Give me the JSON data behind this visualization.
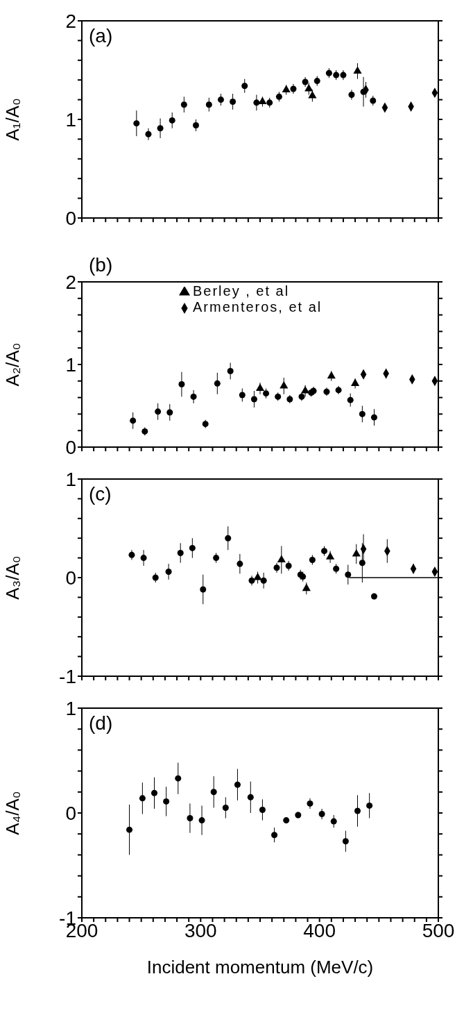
{
  "chart_data": [
    {
      "type": "scatter",
      "title": "(a)",
      "ylabel": "A₁/A₀",
      "xlim": [
        200,
        500
      ],
      "ylim": [
        0,
        2
      ],
      "tick_labels": "y",
      "legend": false,
      "xticks": [
        200,
        {
          "value": 210,
          "label": null
        },
        {
          "value": 220,
          "label": null
        },
        {
          "value": 230,
          "label": null
        },
        {
          "value": 240,
          "label": null
        },
        {
          "value": 250,
          "label": null
        },
        {
          "value": 260,
          "label": null
        },
        {
          "value": 270,
          "label": null
        },
        {
          "value": 280,
          "label": null
        },
        {
          "value": 290,
          "label": null
        },
        300,
        {
          "value": 310,
          "label": null
        },
        {
          "value": 320,
          "label": null
        },
        {
          "value": 330,
          "label": null
        },
        {
          "value": 340,
          "label": null
        },
        {
          "value": 350,
          "label": null
        },
        {
          "value": 360,
          "label": null
        },
        {
          "value": 370,
          "label": null
        },
        {
          "value": 380,
          "label": null
        },
        {
          "value": 390,
          "label": null
        },
        400,
        {
          "value": 410,
          "label": null
        },
        {
          "value": 420,
          "label": null
        },
        {
          "value": 430,
          "label": null
        },
        {
          "value": 440,
          "label": null
        },
        {
          "value": 450,
          "label": null
        },
        {
          "value": 460,
          "label": null
        },
        {
          "value": 470,
          "label": null
        },
        {
          "value": 480,
          "label": null
        },
        {
          "value": 490,
          "label": null
        },
        500
      ],
      "yticks": [
        0,
        {
          "value": 0.2,
          "label": null
        },
        {
          "value": 0.4,
          "label": null
        },
        {
          "value": 0.6,
          "label": null
        },
        {
          "value": 0.8,
          "label": null
        },
        1,
        {
          "value": 1.2,
          "label": null
        },
        {
          "value": 1.4,
          "label": null
        },
        {
          "value": 1.6,
          "label": null
        },
        {
          "value": 1.8,
          "label": null
        },
        2
      ],
      "series": [
        {
          "color": "#000000",
          "marker": "circle",
          "x": [
            246,
            256,
            266,
            276,
            286,
            296,
            307,
            317,
            327,
            337,
            347,
            358,
            366,
            378,
            388,
            398,
            408,
            414,
            420,
            427,
            437,
            445
          ],
          "values": [
            0.96,
            0.85,
            0.91,
            0.99,
            1.15,
            0.94,
            1.15,
            1.2,
            1.18,
            1.34,
            1.17,
            1.17,
            1.23,
            1.31,
            1.38,
            1.39,
            1.47,
            1.45,
            1.45,
            1.25,
            1.28,
            1.19
          ],
          "errors": [
            0.13,
            0.06,
            0.1,
            0.08,
            0.08,
            0.06,
            0.07,
            0.06,
            0.08,
            0.07,
            0.08,
            0.05,
            0.05,
            0.05,
            0.05,
            0.05,
            0.05,
            0.05,
            0.05,
            0.05,
            0.15,
            0.05
          ]
        },
        {
          "color": "#000000",
          "marker": "triangle",
          "x": [
            352,
            372,
            391,
            394,
            432
          ],
          "values": [
            1.18,
            1.3,
            1.31,
            1.24,
            1.49
          ],
          "errors": [
            0.05,
            0.05,
            0.06,
            0.06,
            0.08
          ]
        },
        {
          "color": "#000000",
          "marker": "diamond",
          "x": [
            439,
            455,
            477,
            497
          ],
          "values": [
            1.3,
            1.12,
            1.13,
            1.27
          ],
          "errors": [
            0.08,
            0.04,
            0.04,
            0.04
          ]
        }
      ]
    },
    {
      "type": "scatter",
      "title": "(b)",
      "ylabel": "A₂/A₀",
      "xlim": [
        200,
        500
      ],
      "ylim": [
        0,
        2
      ],
      "tick_labels": "y",
      "legend": "top",
      "xticks": [
        200,
        {
          "value": 210,
          "label": null
        },
        {
          "value": 220,
          "label": null
        },
        {
          "value": 230,
          "label": null
        },
        {
          "value": 240,
          "label": null
        },
        {
          "value": 250,
          "label": null
        },
        {
          "value": 260,
          "label": null
        },
        {
          "value": 270,
          "label": null
        },
        {
          "value": 280,
          "label": null
        },
        {
          "value": 290,
          "label": null
        },
        300,
        {
          "value": 310,
          "label": null
        },
        {
          "value": 320,
          "label": null
        },
        {
          "value": 330,
          "label": null
        },
        {
          "value": 340,
          "label": null
        },
        {
          "value": 350,
          "label": null
        },
        {
          "value": 360,
          "label": null
        },
        {
          "value": 370,
          "label": null
        },
        {
          "value": 380,
          "label": null
        },
        {
          "value": 390,
          "label": null
        },
        400,
        {
          "value": 410,
          "label": null
        },
        {
          "value": 420,
          "label": null
        },
        {
          "value": 430,
          "label": null
        },
        {
          "value": 440,
          "label": null
        },
        {
          "value": 450,
          "label": null
        },
        {
          "value": 460,
          "label": null
        },
        {
          "value": 470,
          "label": null
        },
        {
          "value": 480,
          "label": null
        },
        {
          "value": 490,
          "label": null
        },
        500
      ],
      "yticks": [
        0,
        {
          "value": 0.2,
          "label": null
        },
        {
          "value": 0.4,
          "label": null
        },
        {
          "value": 0.6,
          "label": null
        },
        {
          "value": 0.8,
          "label": null
        },
        1,
        {
          "value": 1.2,
          "label": null
        },
        {
          "value": 1.4,
          "label": null
        },
        {
          "value": 1.6,
          "label": null
        },
        {
          "value": 1.8,
          "label": null
        },
        2
      ],
      "series": [
        {
          "color": "#000000",
          "marker": "circle",
          "x": [
            243,
            253,
            264,
            274,
            284,
            294,
            304,
            314,
            325,
            335,
            345,
            355,
            365,
            375,
            385,
            390,
            393,
            395,
            406,
            416,
            426,
            436,
            446
          ],
          "values": [
            0.32,
            0.19,
            0.43,
            0.42,
            0.76,
            0.61,
            0.28,
            0.77,
            0.92,
            0.63,
            0.58,
            0.65,
            0.61,
            0.58,
            0.61,
            null,
            0.66,
            0.68,
            0.67,
            0.69,
            0.57,
            0.4,
            0.36
          ],
          "errors": [
            0.1,
            0.05,
            0.1,
            0.1,
            0.15,
            0.08,
            0.05,
            0.13,
            0.1,
            0.08,
            0.1,
            0.06,
            0.05,
            0.05,
            0.05,
            null,
            0.05,
            0.05,
            0.05,
            0.05,
            0.08,
            0.1,
            0.1
          ]
        },
        {
          "name": "Berley , et al",
          "color": "#000000",
          "marker": "triangle",
          "x": [
            350,
            370,
            388,
            410,
            430
          ],
          "values": [
            0.71,
            0.74,
            0.68,
            0.86,
            0.77
          ],
          "errors": [
            0.07,
            0.1,
            0.07,
            0.06,
            0.06
          ]
        },
        {
          "name": "Armenteros, et al",
          "color": "#000000",
          "marker": "diamond",
          "x": [
            437,
            456,
            478,
            497
          ],
          "values": [
            0.88,
            0.89,
            0.82,
            0.8
          ],
          "errors": [
            0.05,
            0.06,
            0.05,
            0.05
          ]
        }
      ]
    },
    {
      "type": "scatter",
      "title": "(c)",
      "ylabel": "A₃/A₀",
      "xlim": [
        200,
        500
      ],
      "ylim": [
        -1,
        1
      ],
      "tick_labels": "y",
      "legend": false,
      "xticks": [
        200,
        {
          "value": 210,
          "label": null
        },
        {
          "value": 220,
          "label": null
        },
        {
          "value": 230,
          "label": null
        },
        {
          "value": 240,
          "label": null
        },
        {
          "value": 250,
          "label": null
        },
        {
          "value": 260,
          "label": null
        },
        {
          "value": 270,
          "label": null
        },
        {
          "value": 280,
          "label": null
        },
        {
          "value": 290,
          "label": null
        },
        300,
        {
          "value": 310,
          "label": null
        },
        {
          "value": 320,
          "label": null
        },
        {
          "value": 330,
          "label": null
        },
        {
          "value": 340,
          "label": null
        },
        {
          "value": 350,
          "label": null
        },
        {
          "value": 360,
          "label": null
        },
        {
          "value": 370,
          "label": null
        },
        {
          "value": 380,
          "label": null
        },
        {
          "value": 390,
          "label": null
        },
        400,
        {
          "value": 410,
          "label": null
        },
        {
          "value": 420,
          "label": null
        },
        {
          "value": 430,
          "label": null
        },
        {
          "value": 440,
          "label": null
        },
        {
          "value": 450,
          "label": null
        },
        {
          "value": 460,
          "label": null
        },
        {
          "value": 470,
          "label": null
        },
        {
          "value": 480,
          "label": null
        },
        {
          "value": 490,
          "label": null
        },
        500
      ],
      "yticks": [
        -1,
        {
          "value": -0.8,
          "label": null
        },
        {
          "value": -0.6,
          "label": null
        },
        {
          "value": -0.4,
          "label": null
        },
        {
          "value": -0.2,
          "label": null
        },
        0,
        {
          "value": 0.2,
          "label": null
        },
        {
          "value": 0.4,
          "label": null
        },
        {
          "value": 0.6,
          "label": null
        },
        {
          "value": 0.8,
          "label": null
        },
        1
      ],
      "series": [
        {
          "color": "#000000",
          "marker": "circle",
          "x": [
            242,
            252,
            262,
            273,
            283,
            293,
            302,
            313,
            323,
            333,
            343,
            353,
            364,
            374,
            384,
            386,
            394,
            404,
            414,
            424,
            436,
            446
          ],
          "values": [
            0.23,
            0.2,
            0.0,
            0.06,
            0.25,
            0.3,
            -0.12,
            0.2,
            0.4,
            0.14,
            -0.03,
            -0.03,
            0.1,
            0.12,
            0.03,
            0.01,
            0.18,
            0.27,
            0.09,
            0.03,
            0.15,
            -0.19
          ],
          "errors": [
            0.05,
            0.08,
            0.05,
            0.08,
            0.1,
            0.1,
            0.15,
            0.05,
            0.12,
            0.1,
            0.05,
            0.08,
            0.05,
            0.05,
            0.05,
            0.05,
            0.05,
            0.05,
            0.05,
            0.1,
            0.2,
            0.03
          ]
        },
        {
          "color": "#000000",
          "marker": "triangle",
          "x": [
            348,
            368,
            389,
            409,
            431
          ],
          "values": [
            0.0,
            0.18,
            -0.11,
            0.21,
            0.24
          ],
          "errors": [
            0.06,
            0.14,
            0.06,
            0.06,
            0.1
          ]
        },
        {
          "color": "#000000",
          "marker": "diamond",
          "x": [
            437,
            457,
            479,
            497
          ],
          "values": [
            0.29,
            0.27,
            0.09,
            0.06
          ],
          "errors": [
            0.15,
            0.12,
            0.05,
            0.04
          ]
        },
        {
          "type": "line",
          "color": "#000000",
          "marker": "none",
          "x": [
            425,
            500
          ],
          "values": [
            0,
            0
          ]
        }
      ]
    },
    {
      "type": "scatter",
      "title": "(d)",
      "ylabel": "A₄/A₀",
      "xlabel": "Incident momentum (MeV/c)",
      "xlim": [
        200,
        500
      ],
      "ylim": [
        -1,
        1
      ],
      "legend": false,
      "xticks": [
        200,
        {
          "value": 210,
          "label": null
        },
        {
          "value": 220,
          "label": null
        },
        {
          "value": 230,
          "label": null
        },
        {
          "value": 240,
          "label": null
        },
        {
          "value": 250,
          "label": null
        },
        {
          "value": 260,
          "label": null
        },
        {
          "value": 270,
          "label": null
        },
        {
          "value": 280,
          "label": null
        },
        {
          "value": 290,
          "label": null
        },
        300,
        {
          "value": 310,
          "label": null
        },
        {
          "value": 320,
          "label": null
        },
        {
          "value": 330,
          "label": null
        },
        {
          "value": 340,
          "label": null
        },
        {
          "value": 350,
          "label": null
        },
        {
          "value": 360,
          "label": null
        },
        {
          "value": 370,
          "label": null
        },
        {
          "value": 380,
          "label": null
        },
        {
          "value": 390,
          "label": null
        },
        400,
        {
          "value": 410,
          "label": null
        },
        {
          "value": 420,
          "label": null
        },
        {
          "value": 430,
          "label": null
        },
        {
          "value": 440,
          "label": null
        },
        {
          "value": 450,
          "label": null
        },
        {
          "value": 460,
          "label": null
        },
        {
          "value": 470,
          "label": null
        },
        {
          "value": 480,
          "label": null
        },
        {
          "value": 490,
          "label": null
        },
        500
      ],
      "yticks": [
        -1,
        {
          "value": -0.8,
          "label": null
        },
        {
          "value": -0.6,
          "label": null
        },
        {
          "value": -0.4,
          "label": null
        },
        {
          "value": -0.2,
          "label": null
        },
        0,
        {
          "value": 0.2,
          "label": null
        },
        {
          "value": 0.4,
          "label": null
        },
        {
          "value": 0.6,
          "label": null
        },
        {
          "value": 0.8,
          "label": null
        },
        1
      ],
      "series": [
        {
          "color": "#000000",
          "marker": "circle",
          "x": [
            240,
            251,
            261,
            271,
            281,
            291,
            301,
            311,
            321,
            331,
            342,
            352,
            362,
            372,
            382,
            392,
            402,
            412,
            422,
            432,
            442
          ],
          "values": [
            -0.16,
            0.14,
            0.19,
            0.11,
            0.33,
            -0.05,
            -0.07,
            0.2,
            0.05,
            0.27,
            0.15,
            0.03,
            -0.21,
            -0.07,
            -0.02,
            0.09,
            -0.01,
            -0.08,
            -0.27,
            0.02,
            0.07
          ],
          "errors": [
            0.24,
            0.15,
            0.15,
            0.14,
            0.15,
            0.14,
            0.14,
            0.15,
            0.1,
            0.15,
            0.15,
            0.1,
            0.07,
            0.03,
            0.03,
            0.05,
            0.05,
            0.06,
            0.1,
            0.15,
            0.12
          ]
        }
      ]
    }
  ]
}
